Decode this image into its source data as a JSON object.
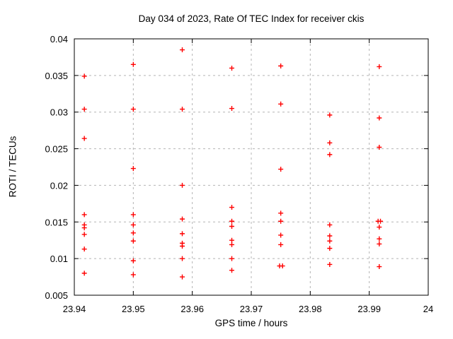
{
  "colors": {
    "marker": "#ff0000",
    "grid": "#b4b4b4",
    "axis": "#000000",
    "background": "#ffffff"
  },
  "chart_data": {
    "type": "scatter",
    "title": "Day 034 of 2023, Rate Of TEC Index for receiver ckis",
    "xlabel": "GPS time / hours",
    "ylabel": "ROTI / TECUs",
    "xlim": [
      23.94,
      24
    ],
    "ylim": [
      0.005,
      0.04
    ],
    "xticks": [
      23.94,
      23.95,
      23.96,
      23.97,
      23.98,
      23.99,
      24
    ],
    "xtick_labels": [
      "23.94",
      "23.95",
      "23.96",
      "23.97",
      "23.98",
      "23.99",
      "24"
    ],
    "yticks": [
      0.005,
      0.01,
      0.015,
      0.02,
      0.025,
      0.03,
      0.035,
      0.04
    ],
    "ytick_labels": [
      "0.005",
      "0.01",
      "0.015",
      "0.02",
      "0.025",
      "0.03",
      "0.035",
      "0.04"
    ],
    "grid": true,
    "legend": "none",
    "marker": "plus",
    "points": [
      [
        23.9417,
        0.0349
      ],
      [
        23.9417,
        0.0304
      ],
      [
        23.9417,
        0.0264
      ],
      [
        23.9417,
        0.016
      ],
      [
        23.9417,
        0.0146
      ],
      [
        23.9417,
        0.0142
      ],
      [
        23.9417,
        0.0133
      ],
      [
        23.9417,
        0.0113
      ],
      [
        23.9417,
        0.008
      ],
      [
        23.95,
        0.0365
      ],
      [
        23.95,
        0.0304
      ],
      [
        23.95,
        0.0223
      ],
      [
        23.95,
        0.016
      ],
      [
        23.95,
        0.0146
      ],
      [
        23.95,
        0.0135
      ],
      [
        23.95,
        0.0124
      ],
      [
        23.95,
        0.0097
      ],
      [
        23.95,
        0.0078
      ],
      [
        23.9583,
        0.0385
      ],
      [
        23.9583,
        0.0304
      ],
      [
        23.9583,
        0.02
      ],
      [
        23.9583,
        0.0154
      ],
      [
        23.9583,
        0.0134
      ],
      [
        23.9583,
        0.0121
      ],
      [
        23.9583,
        0.0117
      ],
      [
        23.9583,
        0.01
      ],
      [
        23.9583,
        0.0075
      ],
      [
        23.9667,
        0.036
      ],
      [
        23.9667,
        0.0305
      ],
      [
        23.9667,
        0.017
      ],
      [
        23.9667,
        0.0151
      ],
      [
        23.9667,
        0.0144
      ],
      [
        23.9667,
        0.0125
      ],
      [
        23.9667,
        0.0119
      ],
      [
        23.9667,
        0.01
      ],
      [
        23.9667,
        0.0084
      ],
      [
        23.975,
        0.0363
      ],
      [
        23.975,
        0.0311
      ],
      [
        23.975,
        0.0222
      ],
      [
        23.975,
        0.0162
      ],
      [
        23.975,
        0.0151
      ],
      [
        23.975,
        0.0132
      ],
      [
        23.975,
        0.0119
      ],
      [
        23.9748,
        0.009
      ],
      [
        23.9753,
        0.009
      ],
      [
        23.9833,
        0.0296
      ],
      [
        23.9833,
        0.0258
      ],
      [
        23.9833,
        0.0242
      ],
      [
        23.9833,
        0.0146
      ],
      [
        23.9833,
        0.0131
      ],
      [
        23.9833,
        0.0124
      ],
      [
        23.9833,
        0.0114
      ],
      [
        23.9833,
        0.0092
      ],
      [
        23.9917,
        0.0362
      ],
      [
        23.9917,
        0.0292
      ],
      [
        23.9917,
        0.0252
      ],
      [
        23.9915,
        0.0151
      ],
      [
        23.9919,
        0.0151
      ],
      [
        23.9917,
        0.0143
      ],
      [
        23.9917,
        0.0127
      ],
      [
        23.9917,
        0.012
      ],
      [
        23.9917,
        0.0089
      ]
    ]
  }
}
